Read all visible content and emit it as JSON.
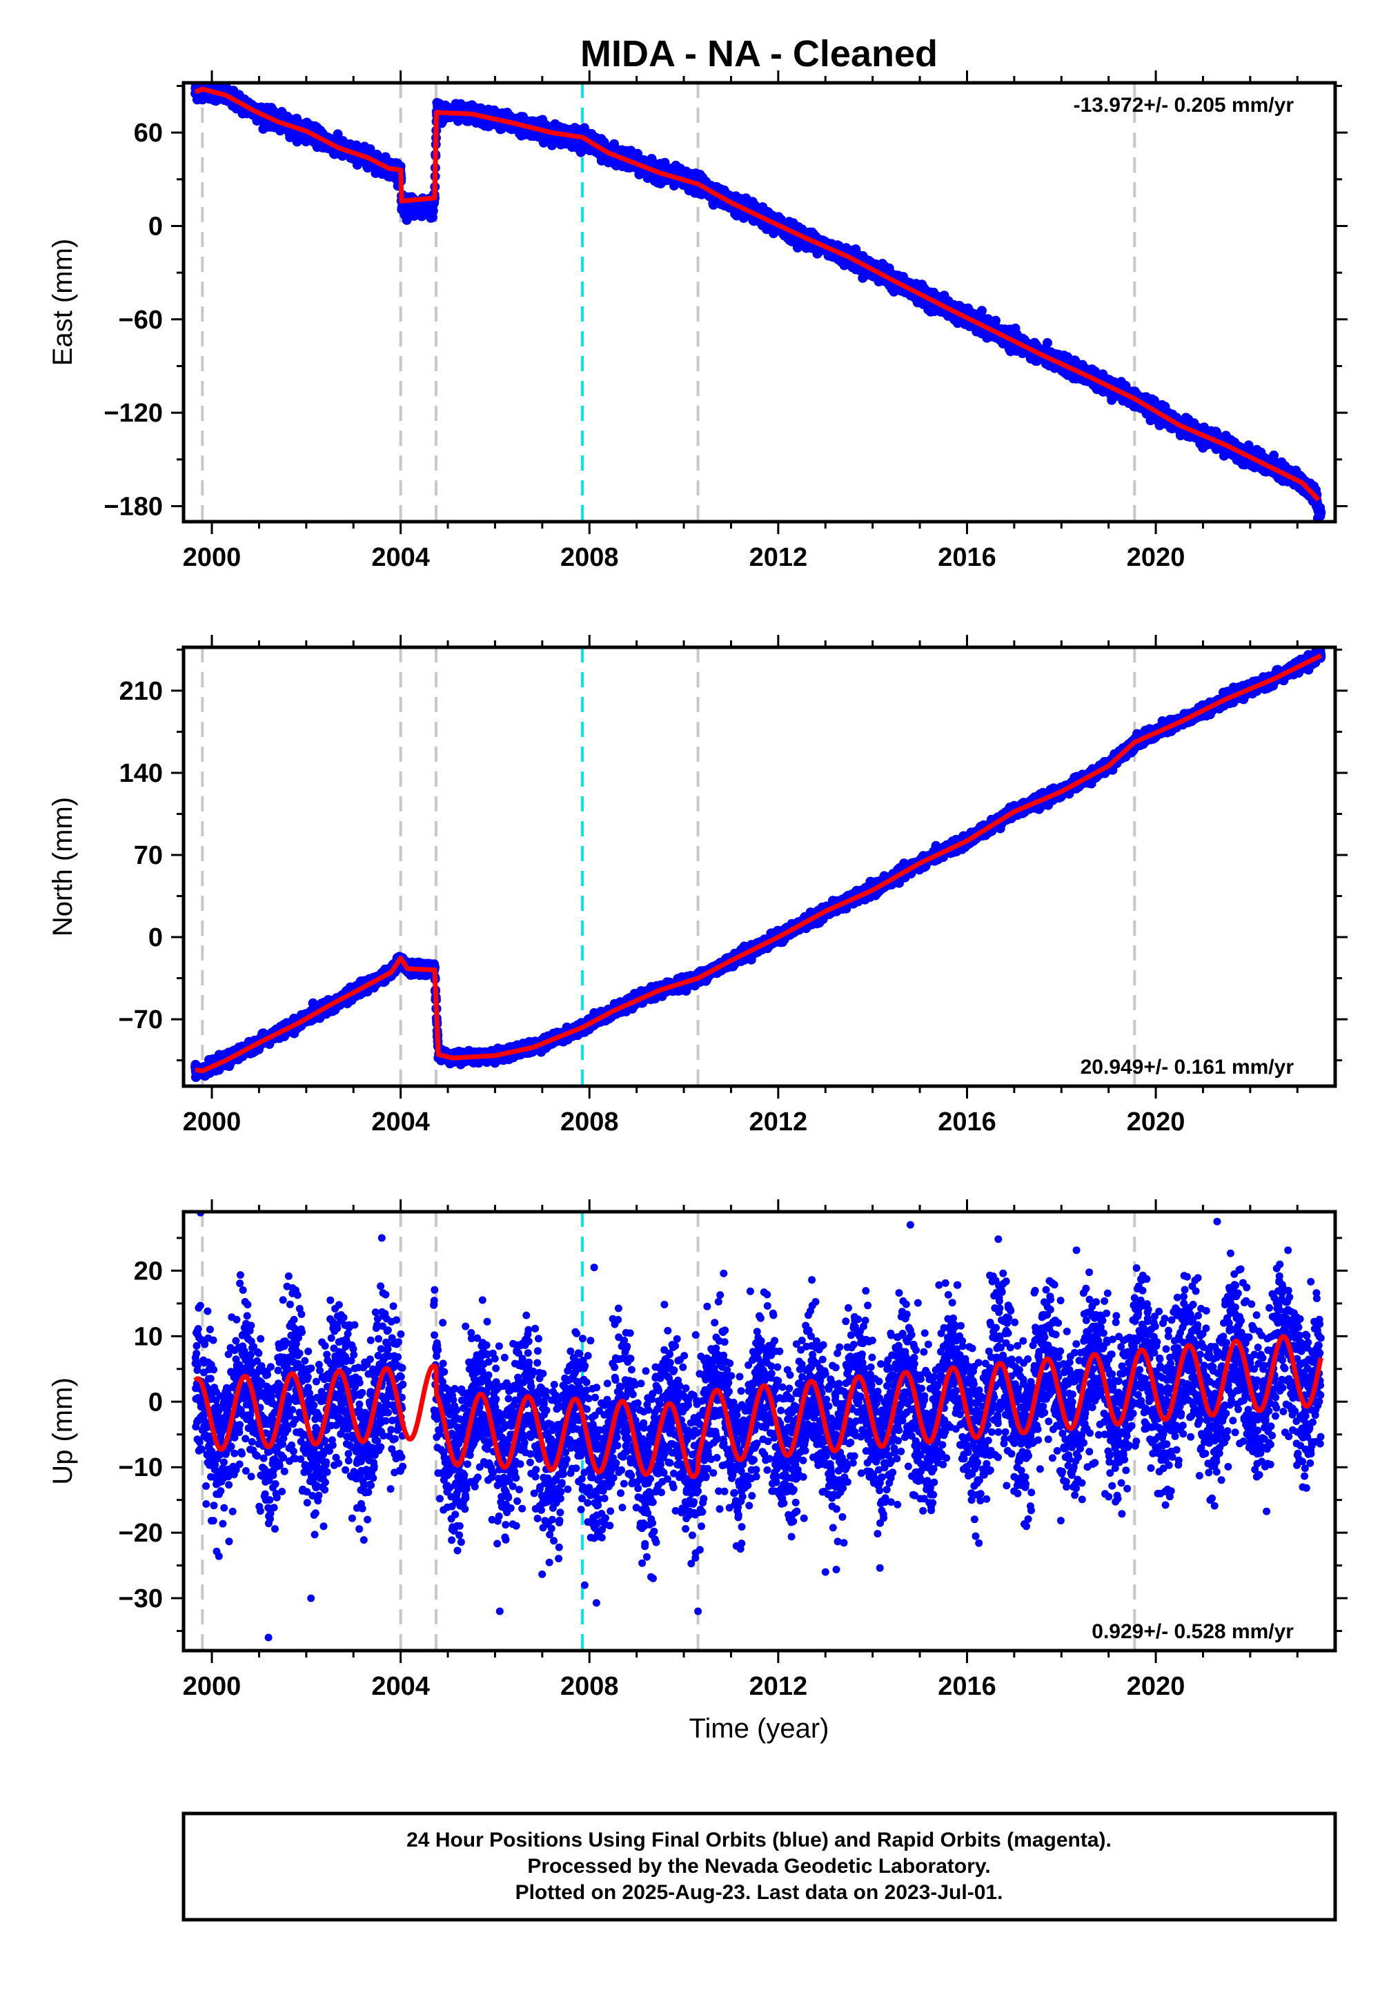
{
  "title": "MIDA  - NA - Cleaned",
  "colors": {
    "data": "#0000ff",
    "model": "#ff0000",
    "event_gray": "#c8c8c8",
    "event_cyan": "#00e5ee",
    "frame": "#000000"
  },
  "xlabel": "Time (year)",
  "footer": {
    "line1": "24 Hour Positions Using Final Orbits (blue) and Rapid Orbits (magenta).",
    "line2": "Processed by the Nevada Geodetic Laboratory.",
    "line3": "Plotted on 2025-Aug-23. Last data on 2023-Jul-01."
  },
  "chart_data": [
    {
      "type": "scatter",
      "component": "east",
      "ylabel": "East (mm)",
      "rate_text": "-13.972+/- 0.205 mm/yr",
      "rate_position": "top-right",
      "xlim": [
        1999.4,
        2023.8
      ],
      "ylim": [
        -190,
        92
      ],
      "yticks": [
        -180,
        -120,
        -60,
        0,
        60
      ],
      "yminor_step": 30,
      "xticks": [
        2000,
        2004,
        2008,
        2012,
        2016,
        2020
      ],
      "xminor_step": 1,
      "event_lines": [
        {
          "x": 1999.8,
          "style": "gray"
        },
        {
          "x": 2004.0,
          "style": "gray"
        },
        {
          "x": 2004.75,
          "style": "gray"
        },
        {
          "x": 2007.85,
          "style": "cyan"
        },
        {
          "x": 2010.3,
          "style": "gray"
        },
        {
          "x": 2019.55,
          "style": "gray"
        }
      ],
      "model": [
        [
          1999.65,
          86
        ],
        [
          1999.8,
          88
        ],
        [
          2000.3,
          84
        ],
        [
          2000.9,
          74
        ],
        [
          2001.4,
          67
        ],
        [
          2002.0,
          61
        ],
        [
          2002.7,
          50
        ],
        [
          2003.3,
          44
        ],
        [
          2003.75,
          37
        ],
        [
          2004.0,
          36
        ],
        [
          2004.02,
          16
        ],
        [
          2004.72,
          18
        ],
        [
          2004.76,
          73
        ],
        [
          2005.5,
          72
        ],
        [
          2006.4,
          66
        ],
        [
          2007.2,
          60
        ],
        [
          2007.85,
          57
        ],
        [
          2008.4,
          47
        ],
        [
          2009.5,
          34
        ],
        [
          2010.3,
          27
        ],
        [
          2011.0,
          15
        ],
        [
          2011.9,
          2
        ],
        [
          2012.6,
          -8
        ],
        [
          2013.5,
          -20
        ],
        [
          2014.5,
          -36
        ],
        [
          2015.6,
          -53
        ],
        [
          2016.6,
          -68
        ],
        [
          2017.6,
          -83
        ],
        [
          2018.6,
          -97
        ],
        [
          2019.55,
          -111
        ],
        [
          2020.5,
          -128
        ],
        [
          2021.5,
          -141
        ],
        [
          2022.5,
          -156
        ],
        [
          2023.1,
          -165
        ],
        [
          2023.45,
          -176
        ]
      ],
      "gaps": [
        [
          2004.02,
          2004.7
        ]
      ],
      "data_noise": 2.6,
      "data_end": 2023.5,
      "data_end_value": -184
    },
    {
      "type": "scatter",
      "component": "north",
      "ylabel": "North (mm)",
      "rate_text": "20.949+/- 0.161 mm/yr",
      "rate_position": "bottom-right",
      "xlim": [
        1999.4,
        2023.8
      ],
      "ylim": [
        -127,
        247
      ],
      "yticks": [
        -70,
        0,
        70,
        140,
        210
      ],
      "yminor_step": 35,
      "xticks": [
        2000,
        2004,
        2008,
        2012,
        2016,
        2020
      ],
      "xminor_step": 1,
      "event_lines": [
        {
          "x": 1999.8,
          "style": "gray"
        },
        {
          "x": 2004.0,
          "style": "gray"
        },
        {
          "x": 2004.75,
          "style": "gray"
        },
        {
          "x": 2007.85,
          "style": "cyan"
        },
        {
          "x": 2010.3,
          "style": "gray"
        },
        {
          "x": 2019.55,
          "style": "gray"
        }
      ],
      "model": [
        [
          1999.65,
          -113
        ],
        [
          1999.8,
          -114
        ],
        [
          2000.3,
          -105
        ],
        [
          2001.0,
          -90
        ],
        [
          2001.8,
          -74
        ],
        [
          2002.5,
          -58
        ],
        [
          2003.2,
          -43
        ],
        [
          2003.8,
          -30
        ],
        [
          2004.0,
          -18
        ],
        [
          2004.15,
          -27
        ],
        [
          2004.72,
          -28
        ],
        [
          2004.8,
          -100
        ],
        [
          2005.1,
          -103
        ],
        [
          2006.0,
          -101
        ],
        [
          2006.8,
          -94
        ],
        [
          2007.85,
          -77
        ],
        [
          2008.5,
          -63
        ],
        [
          2009.5,
          -45
        ],
        [
          2010.3,
          -35
        ],
        [
          2011.0,
          -20
        ],
        [
          2012.0,
          0
        ],
        [
          2013.0,
          22
        ],
        [
          2014.0,
          40
        ],
        [
          2015.0,
          63
        ],
        [
          2016.0,
          82
        ],
        [
          2017.0,
          107
        ],
        [
          2018.0,
          124
        ],
        [
          2019.0,
          146
        ],
        [
          2019.55,
          166
        ],
        [
          2020.5,
          183
        ],
        [
          2021.5,
          203
        ],
        [
          2022.5,
          220
        ],
        [
          2023.5,
          240
        ]
      ],
      "gaps": [],
      "data_noise": 2.3,
      "data_end": 2023.5,
      "data_end_value": 240
    },
    {
      "type": "scatter",
      "component": "up",
      "ylabel": "Up (mm)",
      "rate_text": "0.929+/- 0.528 mm/yr",
      "rate_position": "bottom-right",
      "xlim": [
        1999.4,
        2023.8
      ],
      "ylim": [
        -38,
        29
      ],
      "yticks": [
        -30,
        -20,
        -10,
        0,
        10,
        20
      ],
      "yminor_step": 5,
      "xticks": [
        2000,
        2004,
        2008,
        2012,
        2016,
        2020
      ],
      "xminor_step": 1,
      "event_lines": [
        {
          "x": 1999.8,
          "style": "gray"
        },
        {
          "x": 2004.0,
          "style": "gray"
        },
        {
          "x": 2004.75,
          "style": "gray"
        },
        {
          "x": 2007.85,
          "style": "cyan"
        },
        {
          "x": 2010.3,
          "style": "gray"
        },
        {
          "x": 2019.55,
          "style": "gray"
        }
      ],
      "model_params": {
        "start": 1999.65,
        "end": 2023.5,
        "segments": [
          {
            "from": 1999.65,
            "to": 2004.75,
            "offset_start": -2,
            "offset_end": 0
          },
          {
            "from": 2004.75,
            "to": 2010.3,
            "offset_start": -4,
            "offset_end": -6
          },
          {
            "from": 2010.3,
            "to": 2023.5,
            "offset_start": -4,
            "offset_end": 5
          }
        ],
        "amplitude": 5.5,
        "period_years": 1.0,
        "phase_year": 1999.7
      },
      "data_noise": 6.0,
      "outliers": [
        [
          2001.2,
          -36
        ],
        [
          2003.6,
          25
        ],
        [
          2014.8,
          27
        ],
        [
          2021.3,
          27.5
        ],
        [
          2007.9,
          -28
        ],
        [
          2008.1,
          20.5
        ],
        [
          2013.0,
          -26
        ],
        [
          2010.3,
          -32
        ],
        [
          2006.1,
          -32
        ],
        [
          2002.1,
          -30
        ]
      ]
    }
  ]
}
